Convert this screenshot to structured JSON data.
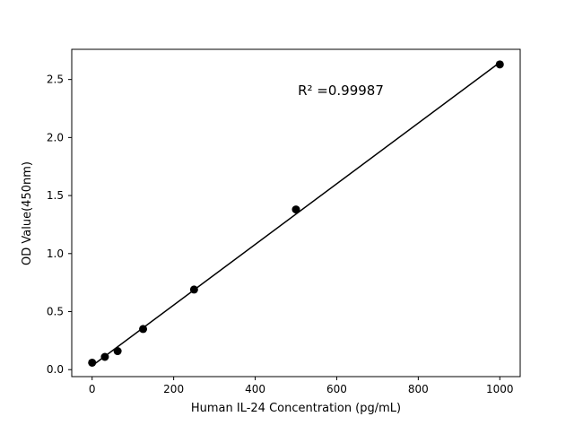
{
  "chart_data": {
    "type": "scatter",
    "title": "",
    "x": [
      0,
      31.25,
      62.5,
      125,
      250,
      500,
      1000
    ],
    "y": [
      0.06,
      0.11,
      0.16,
      0.35,
      0.69,
      1.38,
      2.63
    ],
    "fit_line": true,
    "annotation": "R² =0.99987",
    "xlabel": "Human IL-24 Concentration (pg/mL)",
    "ylabel": "OD Value(450nm)",
    "xlim": [
      -50,
      1050
    ],
    "ylim": [
      -0.06,
      2.76
    ],
    "xticks": [
      0,
      200,
      400,
      600,
      800,
      1000
    ],
    "xtick_labels": [
      "0",
      "200",
      "400",
      "600",
      "800",
      "1000"
    ],
    "yticks": [
      0.0,
      0.5,
      1.0,
      1.5,
      2.0,
      2.5
    ],
    "ytick_labels": [
      "0.0",
      "0.5",
      "1.0",
      "1.5",
      "2.0",
      "2.5"
    ],
    "marker_color": "#000000",
    "line_color": "#000000",
    "grid": false,
    "legend": "none"
  }
}
